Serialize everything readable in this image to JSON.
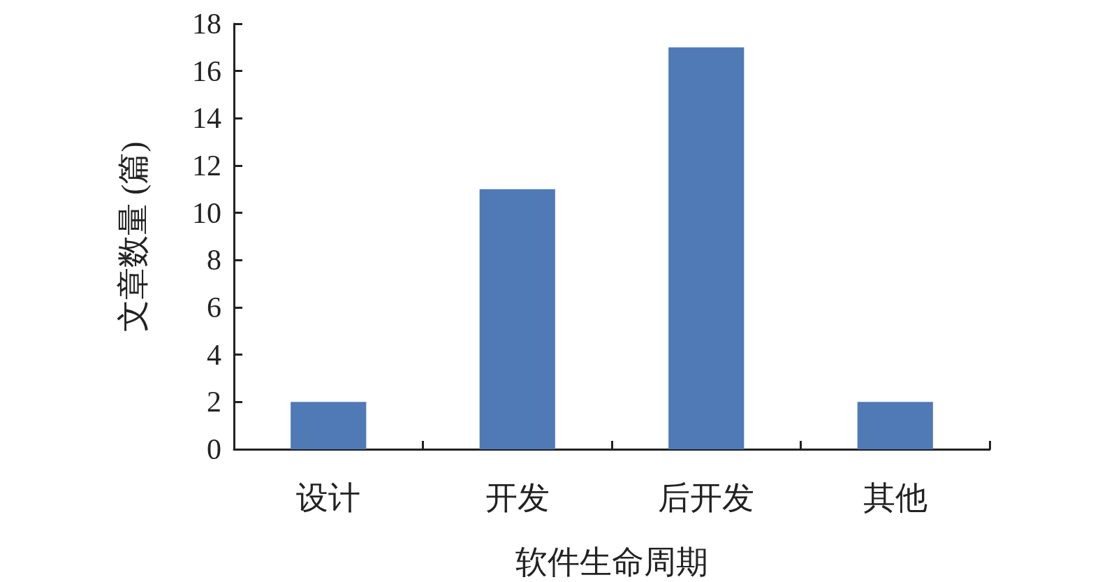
{
  "chart_data": {
    "type": "bar",
    "xlabel": "软件生命周期",
    "ylabel": "文章数量 (篇)",
    "categories": [
      "设计",
      "开发",
      "后开发",
      "其他"
    ],
    "values": [
      2,
      11,
      17,
      2
    ],
    "color": "#4f7ab6",
    "ylim": [
      0,
      18
    ],
    "yticks": [
      0,
      2,
      4,
      6,
      8,
      10,
      12,
      14,
      16,
      18
    ],
    "grid": false
  }
}
